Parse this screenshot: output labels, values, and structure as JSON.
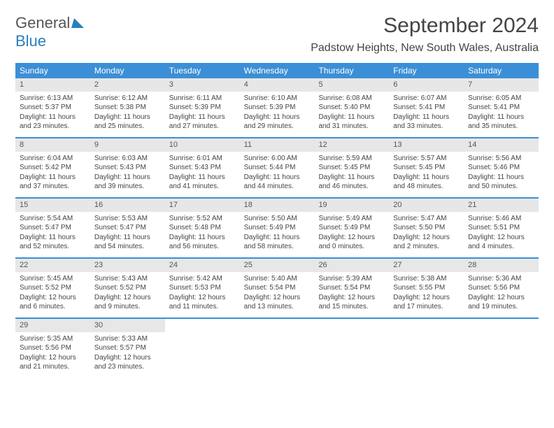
{
  "logo": {
    "general": "General",
    "blue": "Blue"
  },
  "title": "September 2024",
  "subtitle": "Padstow Heights, New South Wales, Australia",
  "colors": {
    "header_bar": "#3b8fd6",
    "day_number_bg": "#e7e7e7",
    "text": "#444444",
    "logo_blue": "#2a7fbc"
  },
  "weekdays": [
    "Sunday",
    "Monday",
    "Tuesday",
    "Wednesday",
    "Thursday",
    "Friday",
    "Saturday"
  ],
  "weeks": [
    [
      {
        "n": "1",
        "sr": "Sunrise: 6:13 AM",
        "ss": "Sunset: 5:37 PM",
        "d1": "Daylight: 11 hours",
        "d2": "and 23 minutes."
      },
      {
        "n": "2",
        "sr": "Sunrise: 6:12 AM",
        "ss": "Sunset: 5:38 PM",
        "d1": "Daylight: 11 hours",
        "d2": "and 25 minutes."
      },
      {
        "n": "3",
        "sr": "Sunrise: 6:11 AM",
        "ss": "Sunset: 5:39 PM",
        "d1": "Daylight: 11 hours",
        "d2": "and 27 minutes."
      },
      {
        "n": "4",
        "sr": "Sunrise: 6:10 AM",
        "ss": "Sunset: 5:39 PM",
        "d1": "Daylight: 11 hours",
        "d2": "and 29 minutes."
      },
      {
        "n": "5",
        "sr": "Sunrise: 6:08 AM",
        "ss": "Sunset: 5:40 PM",
        "d1": "Daylight: 11 hours",
        "d2": "and 31 minutes."
      },
      {
        "n": "6",
        "sr": "Sunrise: 6:07 AM",
        "ss": "Sunset: 5:41 PM",
        "d1": "Daylight: 11 hours",
        "d2": "and 33 minutes."
      },
      {
        "n": "7",
        "sr": "Sunrise: 6:05 AM",
        "ss": "Sunset: 5:41 PM",
        "d1": "Daylight: 11 hours",
        "d2": "and 35 minutes."
      }
    ],
    [
      {
        "n": "8",
        "sr": "Sunrise: 6:04 AM",
        "ss": "Sunset: 5:42 PM",
        "d1": "Daylight: 11 hours",
        "d2": "and 37 minutes."
      },
      {
        "n": "9",
        "sr": "Sunrise: 6:03 AM",
        "ss": "Sunset: 5:43 PM",
        "d1": "Daylight: 11 hours",
        "d2": "and 39 minutes."
      },
      {
        "n": "10",
        "sr": "Sunrise: 6:01 AM",
        "ss": "Sunset: 5:43 PM",
        "d1": "Daylight: 11 hours",
        "d2": "and 41 minutes."
      },
      {
        "n": "11",
        "sr": "Sunrise: 6:00 AM",
        "ss": "Sunset: 5:44 PM",
        "d1": "Daylight: 11 hours",
        "d2": "and 44 minutes."
      },
      {
        "n": "12",
        "sr": "Sunrise: 5:59 AM",
        "ss": "Sunset: 5:45 PM",
        "d1": "Daylight: 11 hours",
        "d2": "and 46 minutes."
      },
      {
        "n": "13",
        "sr": "Sunrise: 5:57 AM",
        "ss": "Sunset: 5:45 PM",
        "d1": "Daylight: 11 hours",
        "d2": "and 48 minutes."
      },
      {
        "n": "14",
        "sr": "Sunrise: 5:56 AM",
        "ss": "Sunset: 5:46 PM",
        "d1": "Daylight: 11 hours",
        "d2": "and 50 minutes."
      }
    ],
    [
      {
        "n": "15",
        "sr": "Sunrise: 5:54 AM",
        "ss": "Sunset: 5:47 PM",
        "d1": "Daylight: 11 hours",
        "d2": "and 52 minutes."
      },
      {
        "n": "16",
        "sr": "Sunrise: 5:53 AM",
        "ss": "Sunset: 5:47 PM",
        "d1": "Daylight: 11 hours",
        "d2": "and 54 minutes."
      },
      {
        "n": "17",
        "sr": "Sunrise: 5:52 AM",
        "ss": "Sunset: 5:48 PM",
        "d1": "Daylight: 11 hours",
        "d2": "and 56 minutes."
      },
      {
        "n": "18",
        "sr": "Sunrise: 5:50 AM",
        "ss": "Sunset: 5:49 PM",
        "d1": "Daylight: 11 hours",
        "d2": "and 58 minutes."
      },
      {
        "n": "19",
        "sr": "Sunrise: 5:49 AM",
        "ss": "Sunset: 5:49 PM",
        "d1": "Daylight: 12 hours",
        "d2": "and 0 minutes."
      },
      {
        "n": "20",
        "sr": "Sunrise: 5:47 AM",
        "ss": "Sunset: 5:50 PM",
        "d1": "Daylight: 12 hours",
        "d2": "and 2 minutes."
      },
      {
        "n": "21",
        "sr": "Sunrise: 5:46 AM",
        "ss": "Sunset: 5:51 PM",
        "d1": "Daylight: 12 hours",
        "d2": "and 4 minutes."
      }
    ],
    [
      {
        "n": "22",
        "sr": "Sunrise: 5:45 AM",
        "ss": "Sunset: 5:52 PM",
        "d1": "Daylight: 12 hours",
        "d2": "and 6 minutes."
      },
      {
        "n": "23",
        "sr": "Sunrise: 5:43 AM",
        "ss": "Sunset: 5:52 PM",
        "d1": "Daylight: 12 hours",
        "d2": "and 9 minutes."
      },
      {
        "n": "24",
        "sr": "Sunrise: 5:42 AM",
        "ss": "Sunset: 5:53 PM",
        "d1": "Daylight: 12 hours",
        "d2": "and 11 minutes."
      },
      {
        "n": "25",
        "sr": "Sunrise: 5:40 AM",
        "ss": "Sunset: 5:54 PM",
        "d1": "Daylight: 12 hours",
        "d2": "and 13 minutes."
      },
      {
        "n": "26",
        "sr": "Sunrise: 5:39 AM",
        "ss": "Sunset: 5:54 PM",
        "d1": "Daylight: 12 hours",
        "d2": "and 15 minutes."
      },
      {
        "n": "27",
        "sr": "Sunrise: 5:38 AM",
        "ss": "Sunset: 5:55 PM",
        "d1": "Daylight: 12 hours",
        "d2": "and 17 minutes."
      },
      {
        "n": "28",
        "sr": "Sunrise: 5:36 AM",
        "ss": "Sunset: 5:56 PM",
        "d1": "Daylight: 12 hours",
        "d2": "and 19 minutes."
      }
    ],
    [
      {
        "n": "29",
        "sr": "Sunrise: 5:35 AM",
        "ss": "Sunset: 5:56 PM",
        "d1": "Daylight: 12 hours",
        "d2": "and 21 minutes."
      },
      {
        "n": "30",
        "sr": "Sunrise: 5:33 AM",
        "ss": "Sunset: 5:57 PM",
        "d1": "Daylight: 12 hours",
        "d2": "and 23 minutes."
      },
      null,
      null,
      null,
      null,
      null
    ]
  ]
}
